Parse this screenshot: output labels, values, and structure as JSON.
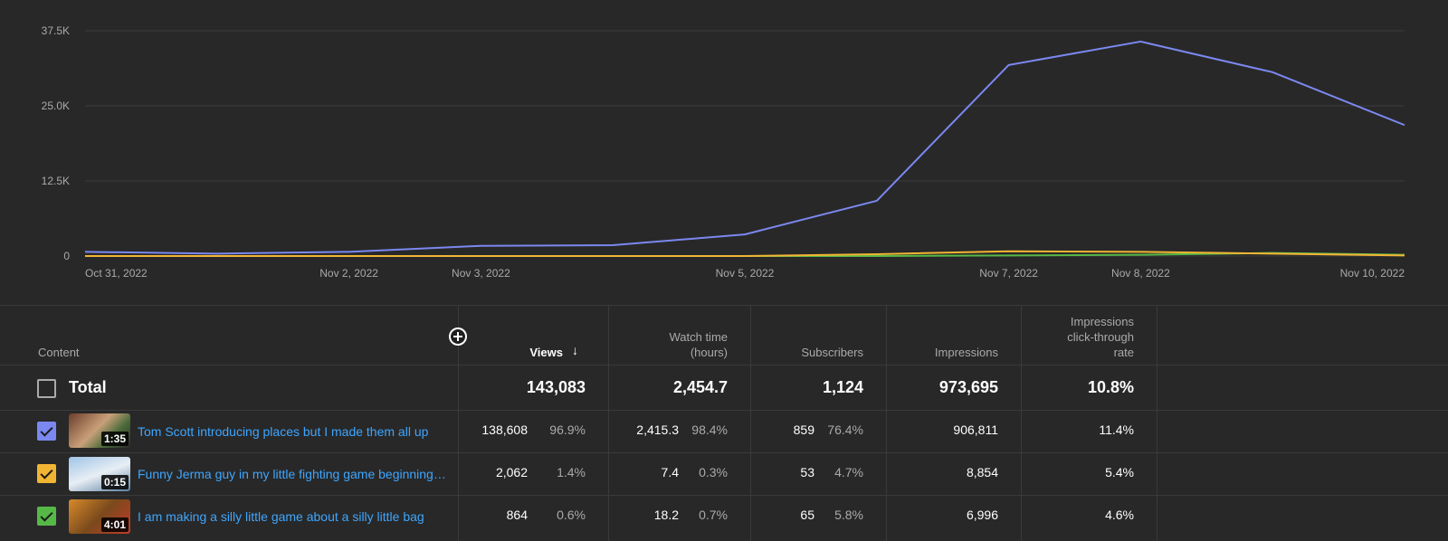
{
  "chart_data": {
    "type": "line",
    "x": [
      "Oct 31, 2022",
      "Nov 1, 2022",
      "Nov 2, 2022",
      "Nov 3, 2022",
      "Nov 4, 2022",
      "Nov 5, 2022",
      "Nov 6, 2022",
      "Nov 7, 2022",
      "Nov 8, 2022",
      "Nov 9, 2022",
      "Nov 10, 2022"
    ],
    "x_tick_labels": [
      "Oct 31, 2022",
      "Nov 2, 2022",
      "Nov 3, 2022",
      "Nov 5, 2022",
      "Nov 7, 2022",
      "Nov 8, 2022",
      "Nov 10, 2022"
    ],
    "y_tick_labels": [
      "0",
      "12.5K",
      "25.0K",
      "37.5K"
    ],
    "ylim": [
      0,
      37500
    ],
    "grid": true,
    "series": [
      {
        "color": "#7b88f0",
        "values": [
          700,
          400,
          700,
          1700,
          1800,
          3600,
          9200,
          31800,
          35700,
          30600,
          21800
        ]
      },
      {
        "color": "#f2b533",
        "values": [
          0,
          0,
          0,
          0,
          0,
          0,
          300,
          800,
          700,
          400,
          100
        ]
      },
      {
        "color": "#56b947",
        "values": [
          0,
          0,
          0,
          0,
          0,
          0,
          0,
          100,
          200,
          500,
          200
        ]
      }
    ]
  },
  "table": {
    "headers": {
      "content": "Content",
      "views": "Views",
      "watch_time_1": "Watch time",
      "watch_time_2": "(hours)",
      "subscribers": "Subscribers",
      "impressions": "Impressions",
      "ctr_1": "Impressions",
      "ctr_2": "click-through",
      "ctr_3": "rate"
    },
    "sort_icon": "arrow-down-icon",
    "add_icon": "plus-circle-icon",
    "total": {
      "label": "Total",
      "views": "143,083",
      "watch_time": "2,454.7",
      "subscribers": "1,124",
      "impressions": "973,695",
      "ctr": "10.8%"
    },
    "rows": [
      {
        "checkbox_color": "#7b88f0",
        "duration": "1:35",
        "title": "Tom Scott introducing places but I made them all up",
        "views": "138,608",
        "views_pct": "96.9%",
        "watch": "2,415.3",
        "watch_pct": "98.4%",
        "subs": "859",
        "subs_pct": "76.4%",
        "impressions": "906,811",
        "ctr": "11.4%"
      },
      {
        "checkbox_color": "#f2b533",
        "duration": "0:15",
        "title": "Funny Jerma guy in my little fighting game beginnings …",
        "views": "2,062",
        "views_pct": "1.4%",
        "watch": "7.4",
        "watch_pct": "0.3%",
        "subs": "53",
        "subs_pct": "4.7%",
        "impressions": "8,854",
        "ctr": "5.4%"
      },
      {
        "checkbox_color": "#56b947",
        "duration": "4:01",
        "title": "I am making a silly little game about a silly little bag",
        "views": "864",
        "views_pct": "0.6%",
        "watch": "18.2",
        "watch_pct": "0.7%",
        "subs": "65",
        "subs_pct": "5.8%",
        "impressions": "6,996",
        "ctr": "4.6%"
      }
    ]
  }
}
